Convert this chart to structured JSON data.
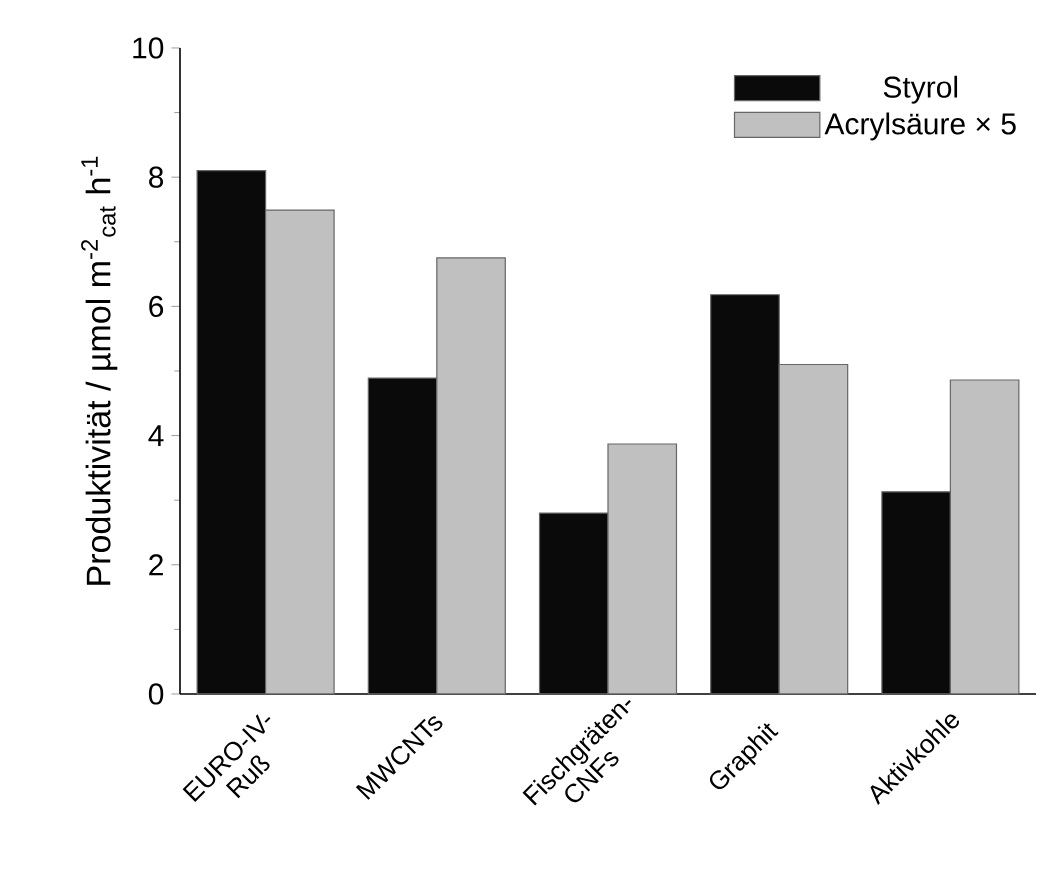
{
  "chart_data": {
    "type": "bar",
    "categories": [
      "EURO-IV- Ruß",
      "MWCNTs",
      "Fischgräten- CNFs",
      "Graphit",
      "Aktivkohle"
    ],
    "series": [
      {
        "name": "Styrol",
        "color": "#0a0a0a",
        "values": [
          8.1,
          4.89,
          2.8,
          6.18,
          3.13
        ]
      },
      {
        "name": "Acrylsäure × 5",
        "color": "#c0c0c0",
        "values": [
          7.49,
          6.75,
          3.87,
          5.1,
          4.86
        ]
      }
    ],
    "ylabel": "Produktivität / µmol m$^{-2}$$_{cat}$ h$^{-1}$",
    "ylim": [
      0,
      10
    ],
    "yticks": [
      0,
      2,
      4,
      6,
      8,
      10
    ],
    "legend": "top right"
  }
}
